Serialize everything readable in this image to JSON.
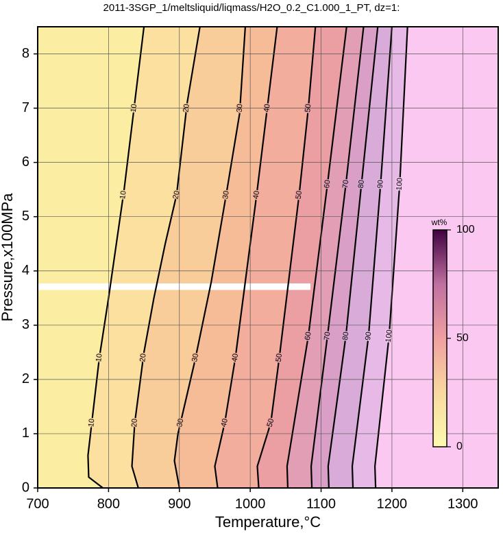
{
  "chart_data": {
    "type": "contour",
    "title": "2011-3SGP_1/meltsliquid/liqmass/H2O_0.2_C1.000_1_PT, dz=1:",
    "x_label": "Temperature,°C",
    "y_label": "Pressure,x100MPa",
    "xlim": [
      700,
      1350
    ],
    "xticks": [
      700,
      800,
      900,
      1000,
      1100,
      1200,
      1300
    ],
    "ylim": [
      0,
      8.5
    ],
    "yticks": [
      0,
      1,
      2,
      3,
      4,
      5,
      6,
      7,
      8
    ],
    "grid": true,
    "low_color": "#fbeea2",
    "contours": [
      {
        "level": 10,
        "color": "#fbe0a0",
        "x": [
          792,
          772,
          771,
          787,
          800,
          811,
          822,
          836,
          850
        ],
        "y": [
          0,
          0.2,
          0.6,
          2.4,
          3.5,
          4.5,
          5.5,
          7.0,
          8.5
        ]
      },
      {
        "level": 20,
        "color": "#f8cd9a",
        "x": [
          842,
          833,
          837,
          850,
          864,
          880,
          896,
          911,
          929
        ],
        "y": [
          0,
          0.4,
          1.2,
          2.5,
          3.5,
          4.5,
          5.4,
          7.1,
          8.5
        ]
      },
      {
        "level": 30,
        "color": "#f6bc98",
        "x": [
          900,
          893,
          898,
          922,
          945,
          966,
          985,
          993
        ],
        "y": [
          0,
          0.5,
          1.0,
          2.35,
          3.8,
          5.4,
          6.9,
          8.5
        ]
      },
      {
        "level": 40,
        "color": "#f2ad9c",
        "x": [
          954,
          950,
          964,
          979,
          994,
          1009,
          1024,
          1038
        ],
        "y": [
          0,
          0.4,
          1.2,
          2.4,
          3.9,
          5.4,
          7.0,
          8.5
        ]
      },
      {
        "level": 50,
        "color": "#eb9fa2",
        "x": [
          1012,
          1010,
          1029,
          1041,
          1055,
          1069,
          1082,
          1092
        ],
        "y": [
          0,
          0.4,
          1.2,
          2.4,
          3.9,
          5.4,
          7.0,
          8.5
        ]
      },
      {
        "level": 60,
        "color": "#e29eb4",
        "x": [
          1053,
          1052,
          1082,
          1109,
          1136
        ],
        "y": [
          0,
          0.4,
          2.8,
          5.6,
          8.5
        ]
      },
      {
        "level": 70,
        "color": "#d99fc6",
        "x": [
          1087,
          1086,
          1109,
          1135,
          1160
        ],
        "y": [
          0,
          0.4,
          2.8,
          5.6,
          8.5
        ]
      },
      {
        "level": 80,
        "color": "#d8abd8",
        "x": [
          1111,
          1110,
          1135,
          1157,
          1180
        ],
        "y": [
          0,
          0.4,
          2.8,
          5.6,
          8.5
        ]
      },
      {
        "level": 90,
        "color": "#e6b9e6",
        "x": [
          1145,
          1144,
          1167,
          1184,
          1200
        ],
        "y": [
          0,
          0.4,
          2.8,
          5.6,
          8.5
        ]
      },
      {
        "level": 100,
        "color": "#fac8f0",
        "x": [
          1177,
          1176,
          1196,
          1211,
          1222
        ],
        "y": [
          0,
          0.4,
          2.8,
          5.6,
          8.5
        ]
      }
    ],
    "colorbar": {
      "label": "wt%",
      "lim": [
        0,
        100
      ],
      "ticks": [
        0,
        50,
        100
      ]
    }
  }
}
